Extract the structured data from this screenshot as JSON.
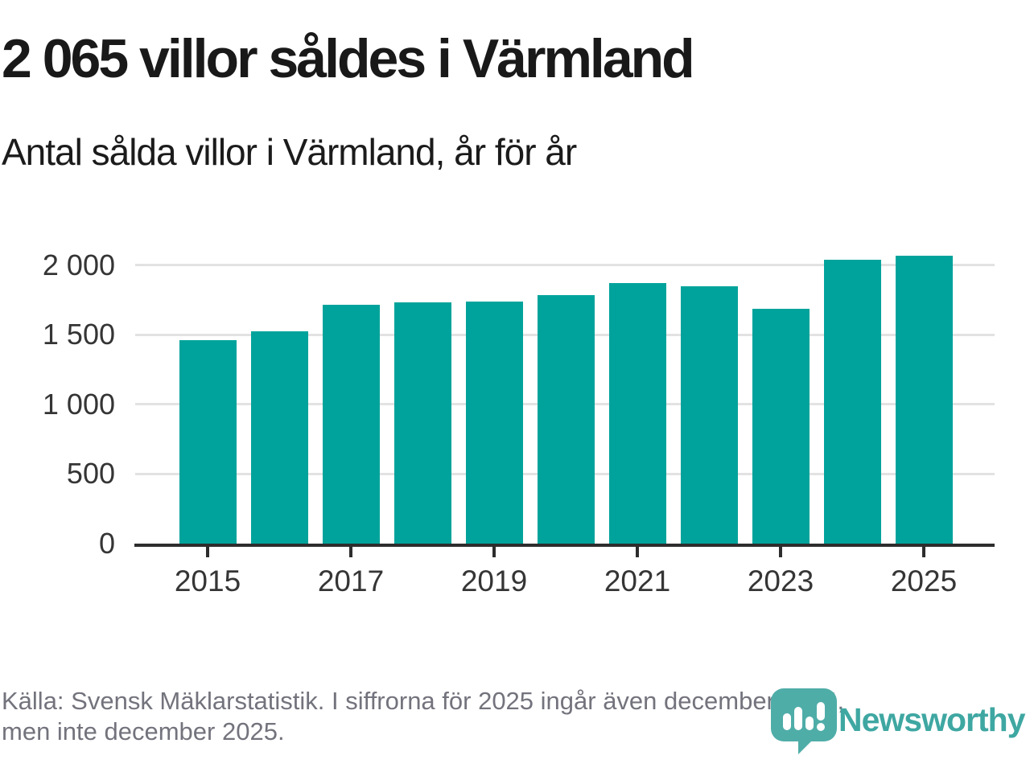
{
  "header": {
    "title": "2 065 villor såldes i Värmland",
    "subtitle": "Antal sålda villor i Värmland, år för år"
  },
  "chart_data": {
    "type": "bar",
    "title": "2 065 villor såldes i Värmland",
    "subtitle": "Antal sålda villor i Värmland, år för år",
    "categories": [
      "2015",
      "2016",
      "2017",
      "2018",
      "2019",
      "2020",
      "2021",
      "2022",
      "2023",
      "2024",
      "2025"
    ],
    "values": [
      1460,
      1525,
      1715,
      1730,
      1740,
      1785,
      1870,
      1850,
      1685,
      2040,
      2065
    ],
    "xlabel": "",
    "ylabel": "",
    "xtick_labels": [
      "2015",
      "2017",
      "2019",
      "2021",
      "2023",
      "2025"
    ],
    "ytick_values": [
      0,
      500,
      1000,
      1500,
      2000
    ],
    "ytick_labels": [
      "0",
      "500",
      "1 000",
      "1 500",
      "2 000"
    ],
    "ylim": [
      0,
      2194
    ],
    "grid": true,
    "legend_position": "none",
    "bar_color": "#00a39b",
    "grid_color": "#e2e2e2",
    "axis_color": "#2d2d2d"
  },
  "footer": {
    "source_line1": "Källa: Svensk Mäklarstatistik. I siffrorna för 2025 ingår även december 2024,",
    "source_line2": "men inte december 2025.",
    "logo_text": "Newsworthy",
    "logo_color": "#3fa7a2",
    "logo_mark_color": "#4fada8"
  }
}
